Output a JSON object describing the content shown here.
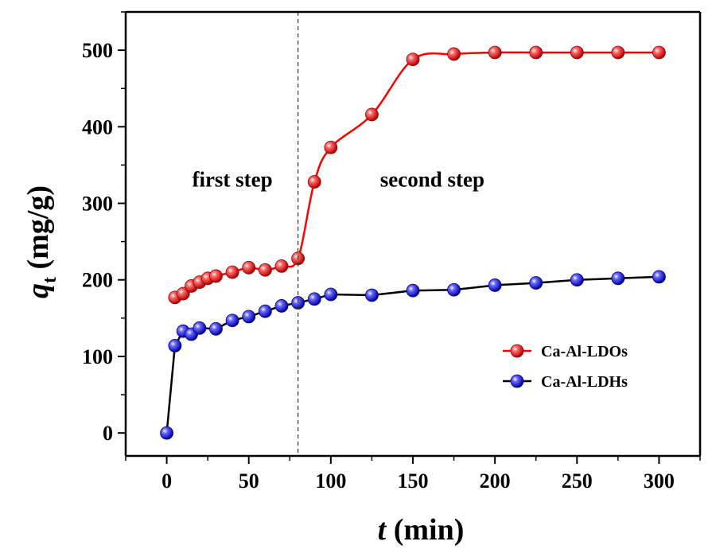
{
  "chart_data": {
    "type": "line",
    "xlabel": {
      "var": "t",
      "unit": " (min)"
    },
    "ylabel": {
      "var": "q",
      "sub": "t",
      "unit": " (mg/g)"
    },
    "xlim": [
      -25,
      325
    ],
    "ylim": [
      -30,
      550
    ],
    "xticks": [
      0,
      50,
      100,
      150,
      200,
      250,
      300
    ],
    "yticks": [
      0,
      100,
      200,
      300,
      400,
      500
    ],
    "grid": false,
    "legend": "right",
    "divider_x": 80,
    "annotations": [
      {
        "text": "first step",
        "x": 40,
        "y": 322
      },
      {
        "text": "second step",
        "x": 130,
        "y": 322
      }
    ],
    "series": [
      {
        "name": "Ca-Al-LDOs",
        "color": "#ff0000",
        "x": [
          5,
          10,
          15,
          20,
          25,
          30,
          40,
          50,
          60,
          70,
          80,
          90,
          100,
          125,
          150,
          175,
          200,
          225,
          250,
          275,
          300
        ],
        "y": [
          177,
          182,
          192,
          197,
          202,
          205,
          210,
          216,
          213,
          218,
          228,
          328,
          373,
          416,
          488,
          495,
          497,
          497,
          497,
          497,
          497
        ]
      },
      {
        "name": "Ca-Al-LDHs",
        "color": "#0000ff",
        "x": [
          0,
          5,
          10,
          15,
          20,
          30,
          40,
          50,
          60,
          70,
          80,
          90,
          100,
          125,
          150,
          175,
          200,
          225,
          250,
          275,
          300
        ],
        "y": [
          0,
          114,
          133,
          129,
          137,
          136,
          147,
          152,
          159,
          166,
          170,
          175,
          181,
          180,
          186,
          187,
          193,
          196,
          200,
          202,
          204
        ]
      }
    ]
  }
}
